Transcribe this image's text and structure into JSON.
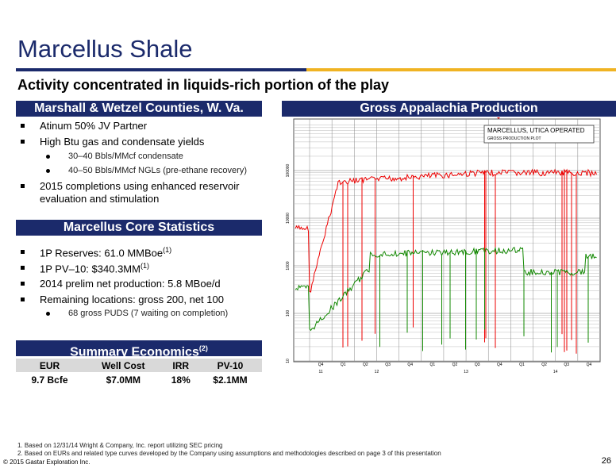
{
  "header": {
    "title": "Marcellus Shale",
    "subtitle": "Activity concentrated in liquids-rich portion of the play"
  },
  "left": {
    "section1": {
      "heading": "Marshall & Wetzel Counties, W. Va.",
      "bullets": [
        {
          "text": "Atinum 50% JV Partner"
        },
        {
          "text": "High Btu gas and condensate yields",
          "sub": [
            "30–40 Bbls/MMcf condensate",
            "40–50 Bbls/MMcf NGLs (pre-ethane recovery)"
          ]
        },
        {
          "text": "2015 completions using enhanced reservoir evaluation and stimulation"
        }
      ]
    },
    "section2": {
      "heading": "Marcellus Core Statistics",
      "bullets": [
        {
          "text": "1P Reserves: 61.0 MMBoe",
          "note": "(1)"
        },
        {
          "text": "1P PV–10: $340.3MM",
          "note": "(1)"
        },
        {
          "text": "2014 prelim net production: 5.8 MBoe/d"
        },
        {
          "text": "Remaining locations: gross 200, net 100",
          "sub": [
            "68 gross PUDS (7 waiting on completion)"
          ]
        }
      ]
    },
    "section3": {
      "heading": "Summary Economics",
      "note": "(2)",
      "table": {
        "columns": [
          "EUR",
          "Well Cost",
          "IRR",
          "PV-10"
        ],
        "rows": [
          [
            "9.7 Bcfe",
            "$7.0MM",
            "18%",
            "$2.1MM"
          ]
        ]
      }
    }
  },
  "right": {
    "heading": "Gross Appalachia Production",
    "plot": {
      "legend": [
        "MARCELLUS, UTICA OPERATED",
        "GROSS PRODUCTION PLOT"
      ],
      "quarters": [
        "Q4",
        "Q1",
        "Q2",
        "Q3",
        "Q4",
        "Q1",
        "Q2",
        "Q3",
        "Q4",
        "Q1",
        "Q2",
        "Q3",
        "Q4"
      ],
      "years": [
        "11",
        "12",
        "13",
        "14"
      ],
      "ylabels": [
        "10",
        "100",
        "1000",
        "10000",
        "100000"
      ]
    }
  },
  "footer": {
    "notes": [
      "1.   Based on 12/31/14 Wright & Company, Inc. report utilizing SEC pricing",
      "2.   Based on EURs and related type curves developed by the Company using assumptions and methodologies described on page 3 of this presentation"
    ],
    "copyright": "© 2015 Gastar Exploration Inc.",
    "page": "26"
  }
}
